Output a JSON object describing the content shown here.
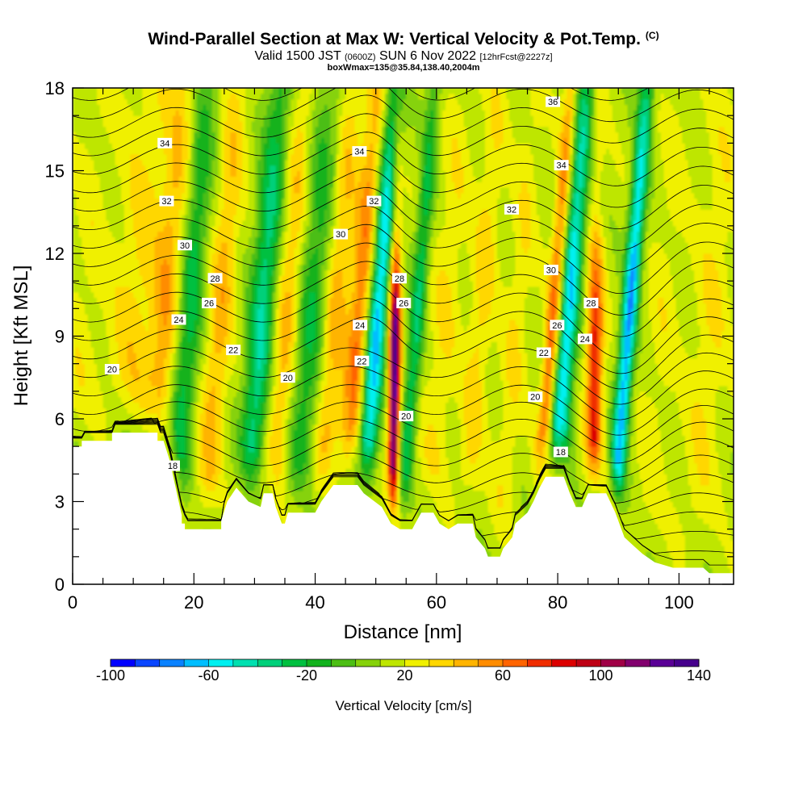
{
  "title": {
    "main": "Wind-Parallel Section at Max W: Vertical Velocity & Pot.Temp.",
    "main_suffix": "(C)",
    "valid_prefix": "Valid 1500 JST",
    "valid_small": "(0600Z)",
    "valid_mid": "SUN 6 Nov 2022",
    "valid_run": "[12hrFcst@2227z]",
    "box_info": "boxWmax=135@35.84,138.40,2004m"
  },
  "chart_data": {
    "type": "heatmap",
    "xlabel": "Distance [nm]",
    "ylabel": "Height [Kft MSL]",
    "xlim": [
      0,
      109
    ],
    "ylim": [
      0,
      18
    ],
    "xticks": [
      0,
      20,
      40,
      60,
      80,
      100
    ],
    "yticks": [
      0,
      3,
      6,
      9,
      12,
      15,
      18
    ],
    "grid": false,
    "colorbar": {
      "label": "Vertical Velocity [cm/s]",
      "min": -100,
      "max": 140,
      "step": 10,
      "tick_labels": [
        "-100",
        "-60",
        "-20",
        "20",
        "60",
        "100",
        "140"
      ],
      "colors": [
        "#0000ff",
        "#0a46ff",
        "#0a82ff",
        "#00beff",
        "#00f0f0",
        "#00e0b0",
        "#00d07a",
        "#00c040",
        "#12b21e",
        "#4cbe14",
        "#86d20a",
        "#bee600",
        "#f0f000",
        "#ffd700",
        "#ffb400",
        "#ff8c00",
        "#ff6400",
        "#f02d00",
        "#dc0000",
        "#be0014",
        "#a00046",
        "#82006e",
        "#5a0096",
        "#46008c"
      ]
    },
    "velocity_field": {
      "background_cm_s": 15,
      "bands": [
        {
          "x": 0.5,
          "w": 3,
          "v": 25
        },
        {
          "x": 9,
          "w": 4,
          "v": 35
        },
        {
          "x": 14,
          "w": 2.2,
          "v": 45
        },
        {
          "x": 18,
          "w": 2.0,
          "v": -25
        },
        {
          "x": 23,
          "w": 2.0,
          "v": 45
        },
        {
          "x": 30,
          "w": 2.2,
          "v": -40
        },
        {
          "x": 34,
          "w": 2.2,
          "v": 45
        },
        {
          "x": 38,
          "w": 2.5,
          "v": -20
        },
        {
          "x": 42,
          "w": 2.0,
          "v": 45
        },
        {
          "x": 46,
          "w": 1.8,
          "v": 60
        },
        {
          "x": 49,
          "w": 1.6,
          "v": -65
        },
        {
          "x": 53,
          "w": 0.9,
          "v": 135
        },
        {
          "x": 55.5,
          "w": 1.3,
          "v": -30
        },
        {
          "x": 60,
          "w": 2.5,
          "v": 30
        },
        {
          "x": 66,
          "w": 2.0,
          "v": 35
        },
        {
          "x": 72,
          "w": 2.0,
          "v": 30
        },
        {
          "x": 78,
          "w": 1.2,
          "v": 65
        },
        {
          "x": 80.5,
          "w": 1.6,
          "v": -60
        },
        {
          "x": 86,
          "w": 1.3,
          "v": 85
        },
        {
          "x": 90.5,
          "w": 1.3,
          "v": -70
        },
        {
          "x": 96,
          "w": 2.5,
          "v": 25
        },
        {
          "x": 104,
          "w": 3,
          "v": 30
        }
      ]
    },
    "terrain_kft": [
      [
        0,
        5.0
      ],
      [
        1.5,
        5.0
      ],
      [
        1.5,
        5.2
      ],
      [
        6.5,
        5.2
      ],
      [
        6.5,
        5.5
      ],
      [
        14,
        5.5
      ],
      [
        14,
        5.2
      ],
      [
        15,
        5.2
      ],
      [
        16,
        4.5
      ],
      [
        17,
        3.5
      ],
      [
        18,
        2.5
      ],
      [
        18,
        2.2
      ],
      [
        18.5,
        2.2
      ],
      [
        18.5,
        2.0
      ],
      [
        24.5,
        2.0
      ],
      [
        24.5,
        2.3
      ],
      [
        25.5,
        3.0
      ],
      [
        27,
        3.5
      ],
      [
        29,
        3.0
      ],
      [
        31,
        2.8
      ],
      [
        31.5,
        3.3
      ],
      [
        33,
        3.3
      ],
      [
        33.5,
        2.8
      ],
      [
        34.5,
        2.2
      ],
      [
        35,
        2.2
      ],
      [
        35.5,
        2.6
      ],
      [
        40,
        2.6
      ],
      [
        41,
        3.0
      ],
      [
        43,
        3.6
      ],
      [
        47,
        3.6
      ],
      [
        48,
        3.3
      ],
      [
        51,
        2.8
      ],
      [
        52.5,
        2.2
      ],
      [
        54,
        2.0
      ],
      [
        56,
        2.0
      ],
      [
        56.5,
        2.2
      ],
      [
        57.5,
        2.6
      ],
      [
        59.5,
        2.6
      ],
      [
        60.5,
        2.2
      ],
      [
        62,
        2.0
      ],
      [
        63.5,
        2.2
      ],
      [
        66,
        2.2
      ],
      [
        66.5,
        1.7
      ],
      [
        68,
        1.3
      ],
      [
        68.5,
        1.0
      ],
      [
        70.5,
        1.0
      ],
      [
        71,
        1.3
      ],
      [
        72.5,
        1.7
      ],
      [
        73,
        2.2
      ],
      [
        75,
        2.6
      ],
      [
        76,
        3.0
      ],
      [
        77,
        3.5
      ],
      [
        78,
        3.9
      ],
      [
        81,
        3.9
      ],
      [
        82,
        3.3
      ],
      [
        83,
        2.8
      ],
      [
        84,
        2.8
      ],
      [
        85,
        3.3
      ],
      [
        88,
        3.3
      ],
      [
        89.5,
        2.6
      ],
      [
        90.5,
        2.0
      ],
      [
        91,
        1.7
      ],
      [
        92.5,
        1.4
      ],
      [
        94,
        1.1
      ],
      [
        96,
        0.8
      ],
      [
        99,
        0.6
      ],
      [
        104,
        0.6
      ],
      [
        105,
        0.4
      ],
      [
        109,
        0.4
      ]
    ],
    "theta_contour_labels": [
      {
        "x": 15.2,
        "y": 16.0,
        "text": "34"
      },
      {
        "x": 15.5,
        "y": 13.9,
        "text": "32"
      },
      {
        "x": 18.5,
        "y": 12.3,
        "text": "30"
      },
      {
        "x": 23.5,
        "y": 11.1,
        "text": "28"
      },
      {
        "x": 22.5,
        "y": 10.2,
        "text": "26"
      },
      {
        "x": 17.5,
        "y": 9.6,
        "text": "24"
      },
      {
        "x": 26.5,
        "y": 8.5,
        "text": "22"
      },
      {
        "x": 6.5,
        "y": 7.8,
        "text": "20"
      },
      {
        "x": 35.5,
        "y": 7.5,
        "text": "20"
      },
      {
        "x": 16.5,
        "y": 4.3,
        "text": "18"
      },
      {
        "x": 47.3,
        "y": 15.7,
        "text": "34"
      },
      {
        "x": 49.7,
        "y": 13.9,
        "text": "32"
      },
      {
        "x": 44.2,
        "y": 12.7,
        "text": "30"
      },
      {
        "x": 53.9,
        "y": 11.1,
        "text": "28"
      },
      {
        "x": 54.6,
        "y": 10.2,
        "text": "26"
      },
      {
        "x": 47.4,
        "y": 9.4,
        "text": "24"
      },
      {
        "x": 47.7,
        "y": 8.1,
        "text": "22"
      },
      {
        "x": 55.0,
        "y": 6.1,
        "text": "20"
      },
      {
        "x": 79.2,
        "y": 17.5,
        "text": "36"
      },
      {
        "x": 80.6,
        "y": 15.2,
        "text": "34"
      },
      {
        "x": 72.4,
        "y": 13.6,
        "text": "32"
      },
      {
        "x": 78.9,
        "y": 11.4,
        "text": "30"
      },
      {
        "x": 85.5,
        "y": 10.2,
        "text": "28"
      },
      {
        "x": 79.9,
        "y": 9.4,
        "text": "26"
      },
      {
        "x": 84.5,
        "y": 8.9,
        "text": "24"
      },
      {
        "x": 77.7,
        "y": 8.4,
        "text": "22"
      },
      {
        "x": 76.3,
        "y": 6.8,
        "text": "20"
      },
      {
        "x": 80.5,
        "y": 4.8,
        "text": "18"
      }
    ]
  }
}
